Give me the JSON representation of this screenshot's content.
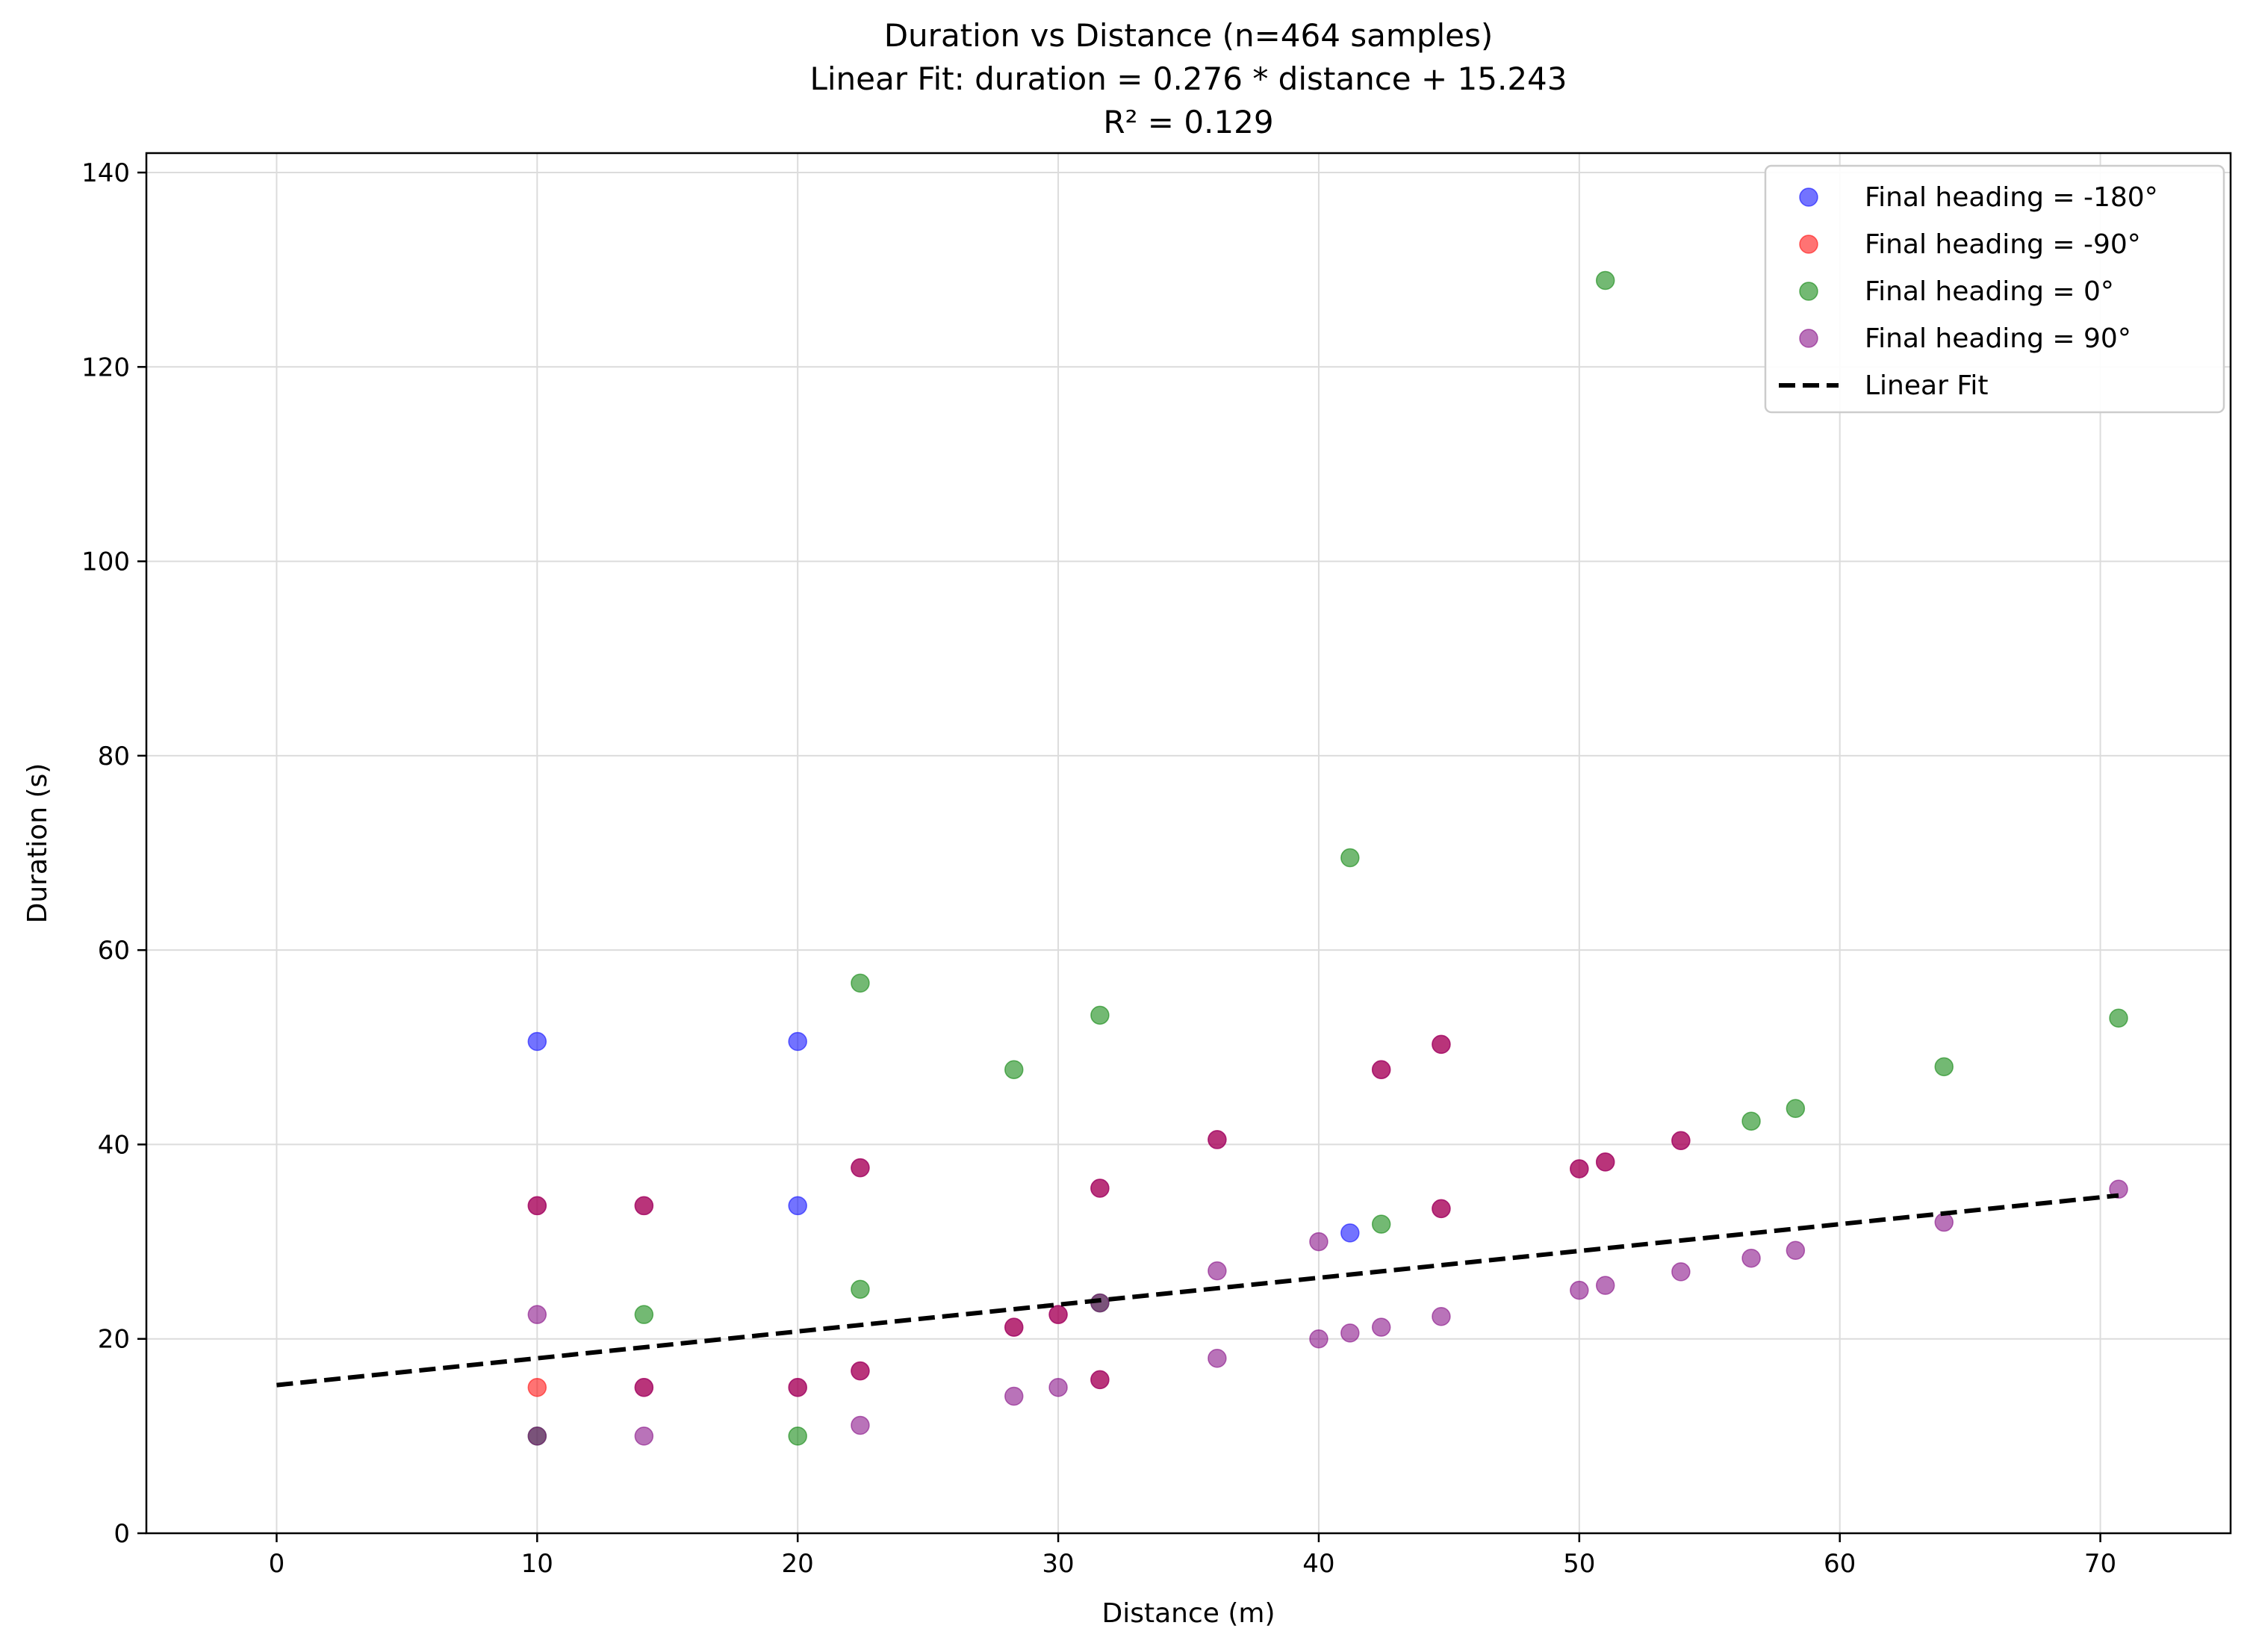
{
  "chart_data": {
    "type": "scatter",
    "title": [
      "Duration vs Distance (n=464 samples)",
      "Linear Fit: duration = 0.276 * distance + 15.243",
      "R² = 0.129"
    ],
    "xlabel": "Distance (m)",
    "ylabel": "Duration (s)",
    "xlim": [
      -5,
      75
    ],
    "ylim": [
      0,
      142
    ],
    "xticks": [
      0,
      10,
      20,
      30,
      40,
      50,
      60,
      70
    ],
    "yticks": [
      0,
      20,
      40,
      60,
      80,
      100,
      120,
      140
    ],
    "grid": true,
    "legend_position": "top-right",
    "series": [
      {
        "name": "Final heading = -180°",
        "color": "#0000ff",
        "points": [
          [
            10,
            50.6
          ],
          [
            20,
            50.6
          ],
          [
            20,
            33.7
          ],
          [
            41.2,
            30.9
          ]
        ]
      },
      {
        "name": "Final heading = -90°",
        "color": "#ff0000",
        "points": [
          [
            10,
            15.0
          ],
          [
            31.6,
            15.8
          ],
          [
            44.7,
            50.3
          ],
          [
            42.4,
            47.7
          ],
          [
            22.4,
            37.6
          ],
          [
            31.6,
            35.5
          ],
          [
            10,
            33.7
          ],
          [
            30,
            22.5
          ],
          [
            28.3,
            21.2
          ],
          [
            20,
            15.0
          ],
          [
            14.1,
            15.0
          ],
          [
            53.9,
            40.4
          ],
          [
            50,
            37.5
          ],
          [
            14.1,
            33.7
          ],
          [
            36.1,
            40.5
          ],
          [
            44.7,
            33.4
          ],
          [
            22.4,
            16.7
          ],
          [
            51,
            38.2
          ]
        ]
      },
      {
        "name": "Final heading = 0°",
        "color": "#008000",
        "points": [
          [
            51,
            128.9
          ],
          [
            41.2,
            69.5
          ],
          [
            22.4,
            56.6
          ],
          [
            31.6,
            53.3
          ],
          [
            70.7,
            53.0
          ],
          [
            28.3,
            47.7
          ],
          [
            64,
            48.0
          ],
          [
            58.3,
            43.7
          ],
          [
            56.6,
            42.4
          ],
          [
            42.4,
            31.8
          ],
          [
            22.4,
            25.1
          ],
          [
            14.1,
            22.5
          ],
          [
            31.6,
            23.7
          ],
          [
            10,
            10.0
          ],
          [
            20,
            10.0
          ]
        ]
      },
      {
        "name": "Final heading = 90°",
        "color": "#800080",
        "points": [
          [
            10,
            22.5
          ],
          [
            10,
            33.7
          ],
          [
            14.1,
            33.7
          ],
          [
            14.1,
            15.0
          ],
          [
            14.1,
            10.0
          ],
          [
            20,
            15.0
          ],
          [
            22.4,
            37.6
          ],
          [
            22.4,
            16.7
          ],
          [
            22.4,
            11.1
          ],
          [
            28.3,
            21.2
          ],
          [
            28.3,
            14.1
          ],
          [
            30,
            22.5
          ],
          [
            30,
            15.0
          ],
          [
            31.6,
            35.5
          ],
          [
            31.6,
            15.8
          ],
          [
            36.1,
            40.5
          ],
          [
            36.1,
            27.0
          ],
          [
            36.1,
            18.0
          ],
          [
            40,
            30.0
          ],
          [
            40,
            20.0
          ],
          [
            41.2,
            20.6
          ],
          [
            42.4,
            47.7
          ],
          [
            42.4,
            21.2
          ],
          [
            44.7,
            50.3
          ],
          [
            44.7,
            33.4
          ],
          [
            44.7,
            22.3
          ],
          [
            50,
            37.5
          ],
          [
            50,
            25.0
          ],
          [
            51,
            38.2
          ],
          [
            51,
            25.5
          ],
          [
            53.9,
            40.4
          ],
          [
            53.9,
            26.9
          ],
          [
            56.6,
            28.3
          ],
          [
            58.3,
            29.1
          ],
          [
            64,
            32.0
          ],
          [
            70.7,
            35.4
          ],
          [
            10,
            10.0
          ],
          [
            31.6,
            23.7
          ]
        ]
      }
    ],
    "fit_line": {
      "name": "Linear Fit",
      "color": "#000000",
      "slope": 0.276,
      "intercept": 15.243,
      "x_range": [
        0,
        70.7
      ]
    }
  }
}
